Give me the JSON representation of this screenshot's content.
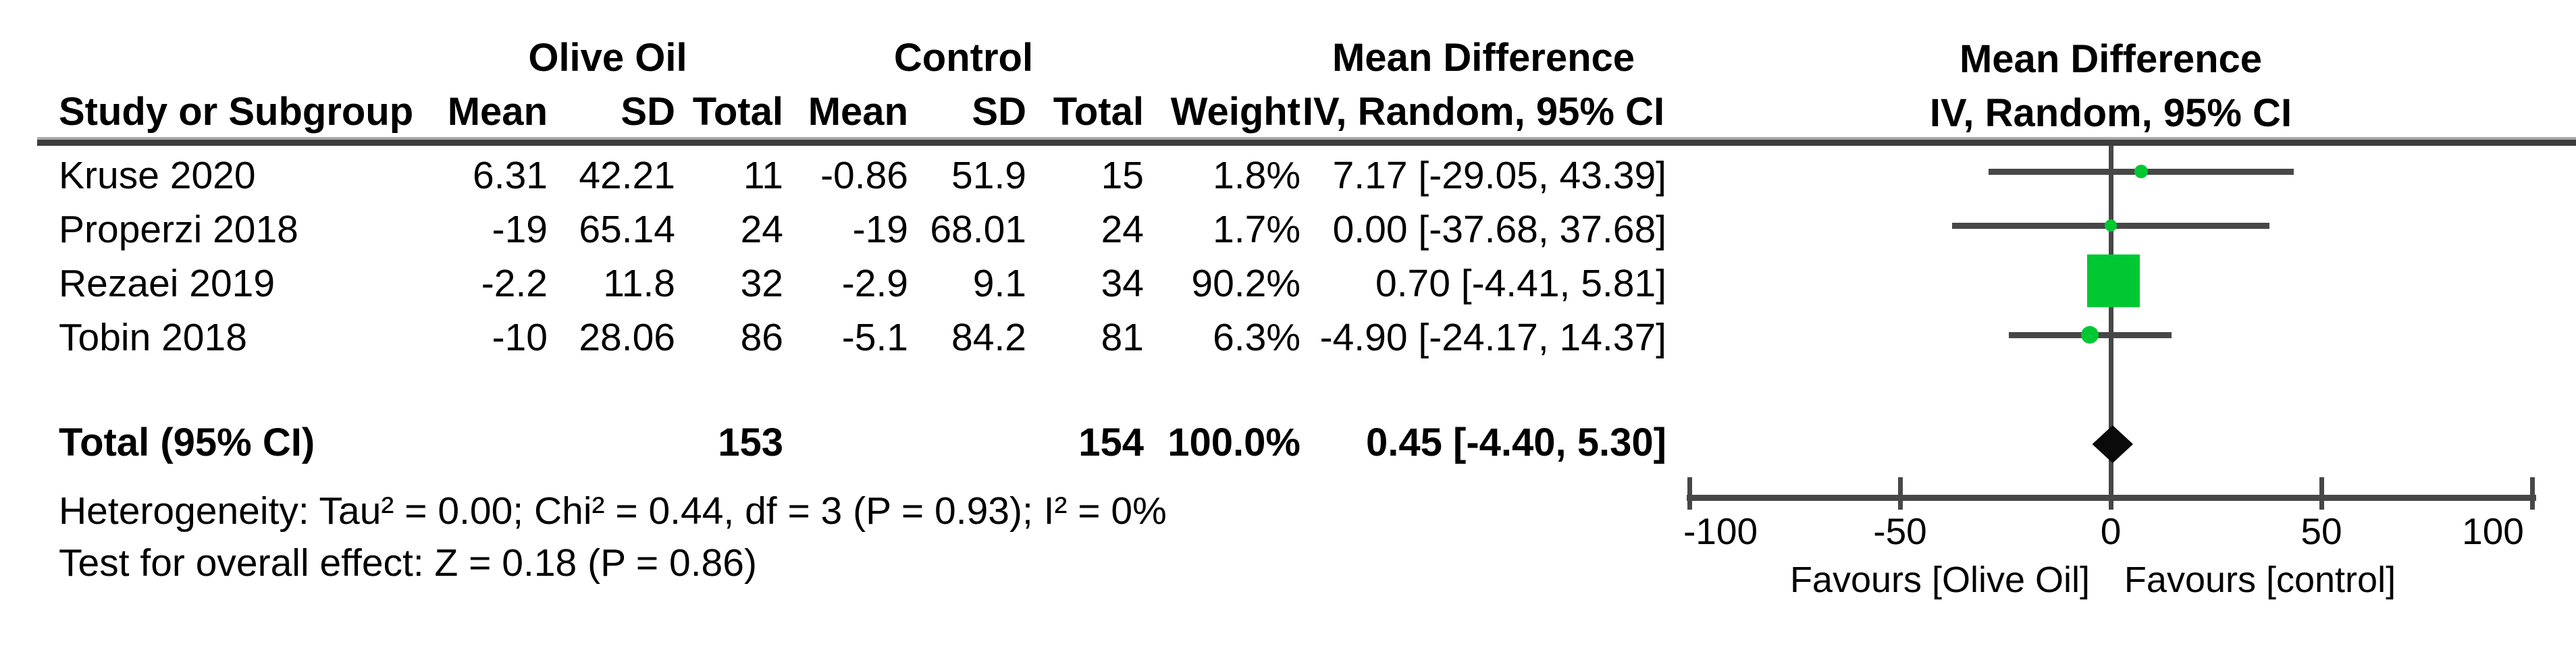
{
  "table": {
    "group_headers": {
      "olive_oil": "Olive Oil",
      "control": "Control",
      "mean_difference": "Mean Difference"
    },
    "col_headers": {
      "study": "Study or Subgroup",
      "mean": "Mean",
      "sd": "SD",
      "total": "Total",
      "weight": "Weight",
      "iv_random": "IV, Random, 95% CI"
    },
    "rows": [
      {
        "study": "Kruse 2020",
        "mean_oo": "6.31",
        "sd_oo": "42.21",
        "total_oo": "11",
        "mean_c": "-0.86",
        "sd_c": "51.9",
        "total_c": "15",
        "weight": "1.8%",
        "md": "7.17 [-29.05, 43.39]"
      },
      {
        "study": "Properzi 2018",
        "mean_oo": "-19",
        "sd_oo": "65.14",
        "total_oo": "24",
        "mean_c": "-19",
        "sd_c": "68.01",
        "total_c": "24",
        "weight": "1.7%",
        "md": "0.00 [-37.68, 37.68]"
      },
      {
        "study": "Rezaei 2019",
        "mean_oo": "-2.2",
        "sd_oo": "11.8",
        "total_oo": "32",
        "mean_c": "-2.9",
        "sd_c": "9.1",
        "total_c": "34",
        "weight": "90.2%",
        "md": "0.70 [-4.41, 5.81]"
      },
      {
        "study": "Tobin 2018",
        "mean_oo": "-10",
        "sd_oo": "28.06",
        "total_oo": "86",
        "mean_c": "-5.1",
        "sd_c": "84.2",
        "total_c": "81",
        "weight": "6.3%",
        "md": "-4.90 [-24.17, 14.37]"
      }
    ],
    "total_row": {
      "label": "Total (95% CI)",
      "total_oo": "153",
      "total_c": "154",
      "weight": "100.0%",
      "md": "0.45 [-4.40, 5.30]"
    },
    "heterogeneity": "Heterogeneity: Tau² = 0.00; Chi² = 0.44, df = 3 (P = 0.93); I² = 0%",
    "overall_effect": "Test for overall effect: Z = 0.18 (P = 0.86)"
  },
  "plot_header": {
    "line1": "Mean Difference",
    "line2": "IV, Random, 95% CI"
  },
  "chart_data": {
    "type": "forest",
    "effect_measure": "Mean Difference, IV, Random, 95% CI",
    "x_axis": {
      "min": -100,
      "max": 100,
      "ticks": [
        -100,
        -50,
        0,
        50,
        100
      ]
    },
    "studies": [
      {
        "name": "Kruse 2020",
        "estimate": 7.17,
        "ci_low": -29.05,
        "ci_high": 43.39,
        "weight_pct": 1.8,
        "marker": "circle",
        "marker_size": 20
      },
      {
        "name": "Properzi 2018",
        "estimate": 0.0,
        "ci_low": -37.68,
        "ci_high": 37.68,
        "weight_pct": 1.7,
        "marker": "circle",
        "marker_size": 18
      },
      {
        "name": "Rezaei 2019",
        "estimate": 0.7,
        "ci_low": -4.41,
        "ci_high": 5.81,
        "weight_pct": 90.2,
        "marker": "square",
        "marker_size": 78
      },
      {
        "name": "Tobin 2018",
        "estimate": -4.9,
        "ci_low": -24.17,
        "ci_high": 14.37,
        "weight_pct": 6.3,
        "marker": "circle",
        "marker_size": 26
      }
    ],
    "total": {
      "label": "Total (95% CI)",
      "estimate": 0.45,
      "ci_low": -4.4,
      "ci_high": 5.3
    },
    "favours_left": "Favours [Olive Oil]",
    "favours_right": "Favours [control]",
    "marker_color": "#00C832",
    "line_color": "#474747",
    "diamond_color": "#0a0a0a"
  }
}
